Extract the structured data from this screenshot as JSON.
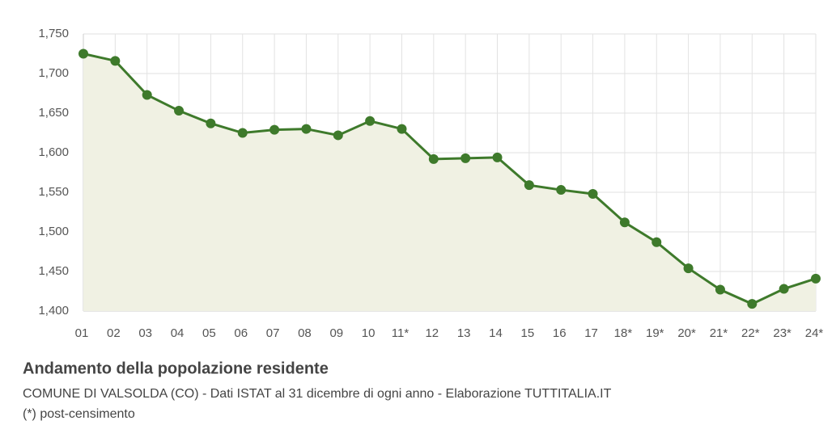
{
  "chart_data": {
    "type": "line",
    "title": "Andamento della popolazione residente",
    "subtitle": "COMUNE DI VALSOLDA (CO) - Dati ISTAT al 31 dicembre di ogni anno - Elaborazione TUTTITALIA.IT",
    "note": "(*) post-censimento",
    "categories": [
      "01",
      "02",
      "03",
      "04",
      "05",
      "06",
      "07",
      "08",
      "09",
      "10",
      "11*",
      "12",
      "13",
      "14",
      "15",
      "16",
      "17",
      "18*",
      "19*",
      "20*",
      "21*",
      "22*",
      "23*",
      "24*"
    ],
    "series": [
      {
        "name": "Popolazione",
        "color": "#3e7a2b",
        "fill": "#f0f1e3",
        "values": [
          1725,
          1716,
          1673,
          1653,
          1637,
          1625,
          1629,
          1630,
          1622,
          1640,
          1630,
          1592,
          1593,
          1594,
          1559,
          1553,
          1548,
          1512,
          1487,
          1454,
          1427,
          1409,
          1428,
          1441
        ]
      }
    ],
    "ylim": [
      1400,
      1750
    ],
    "yticks": [
      {
        "value": 1400,
        "label": "1,400"
      },
      {
        "value": 1450,
        "label": "1,450"
      },
      {
        "value": 1500,
        "label": "1,500"
      },
      {
        "value": 1550,
        "label": "1,550"
      },
      {
        "value": 1600,
        "label": "1,600"
      },
      {
        "value": 1650,
        "label": "1,650"
      },
      {
        "value": 1700,
        "label": "1,700"
      },
      {
        "value": 1750,
        "label": "1,750"
      }
    ],
    "grid": true
  }
}
